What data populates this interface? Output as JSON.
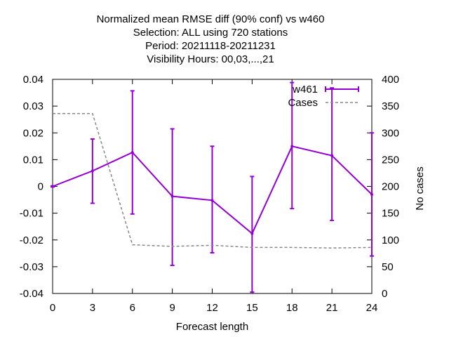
{
  "chart_data": {
    "type": "line",
    "title_lines": [
      "Normalized mean RMSE diff (90% conf) vs w460",
      "Selection: ALL using   720 stations",
      "Period: 20211118-20211231",
      "Visibility   Hours:  00,03,...,21"
    ],
    "xlabel": "Forecast length",
    "ylabel": "",
    "y2label": "No cases",
    "x": [
      0,
      3,
      6,
      9,
      12,
      15,
      18,
      21,
      24
    ],
    "xlim": [
      0,
      24
    ],
    "ylim": [
      -0.04,
      0.04
    ],
    "y2lim": [
      0,
      400
    ],
    "xticks": [
      "0",
      "3",
      "6",
      "9",
      "12",
      "15",
      "18",
      "21",
      "24"
    ],
    "yticks": [
      "-0.04",
      "-0.03",
      "-0.02",
      "-0.01",
      "0",
      "0.01",
      "0.02",
      "0.03",
      "0.04"
    ],
    "y2ticks": [
      "0",
      "50",
      "100",
      "150",
      "200",
      "250",
      "300",
      "350",
      "400"
    ],
    "legend_position": "top-right",
    "series": [
      {
        "name": "w461",
        "axis": "left",
        "style": "errorbars",
        "color": "#9400d3",
        "values": [
          0.0,
          0.0058,
          0.0127,
          -0.0037,
          -0.0052,
          -0.0176,
          0.015,
          0.0115,
          -0.003
        ],
        "err_low": [
          -0.0002,
          -0.0063,
          -0.0103,
          -0.0295,
          -0.0248,
          -0.0395,
          -0.0083,
          -0.0127,
          -0.026
        ],
        "err_high": [
          0.0002,
          0.0177,
          0.0357,
          0.0215,
          0.015,
          0.0037,
          0.0388,
          0.0368,
          0.02
        ]
      },
      {
        "name": "Cases",
        "axis": "right",
        "style": "dashed",
        "color": "#888888",
        "values": [
          336,
          336,
          91,
          88,
          90,
          86,
          86,
          85,
          86
        ]
      }
    ]
  }
}
